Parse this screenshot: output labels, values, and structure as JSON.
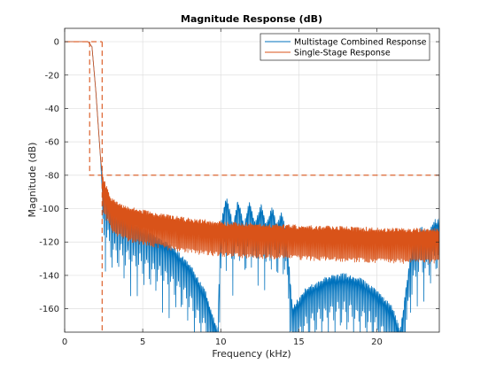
{
  "chart_data": {
    "type": "line",
    "title": "Magnitude Response (dB)",
    "xlabel": "Frequency (kHz)",
    "ylabel": "Magnitude (dB)",
    "xlim": [
      0,
      24
    ],
    "ylim": [
      -174,
      8
    ],
    "xticks": [
      0,
      5,
      10,
      15,
      20
    ],
    "yticks": [
      0,
      -20,
      -40,
      -60,
      -80,
      -100,
      -120,
      -140,
      -160
    ],
    "grid": true,
    "legend_position": "top-right",
    "mask": {
      "color": "#D95319",
      "passband_edge_khz": 1.6,
      "stopband_edge_khz": 2.4,
      "stopband_attenuation_db": -80
    },
    "series": [
      {
        "name": "Multistage Combined Response",
        "color": "#0072BD",
        "envelope": [
          [
            0,
            0
          ],
          [
            1.5,
            0
          ],
          [
            1.75,
            -3
          ],
          [
            2.0,
            -30
          ],
          [
            2.3,
            -70
          ],
          [
            2.4,
            -88
          ],
          [
            3,
            -103
          ],
          [
            4,
            -108
          ],
          [
            5,
            -112
          ],
          [
            6,
            -118
          ],
          [
            7,
            -124
          ],
          [
            8,
            -134
          ],
          [
            9,
            -150
          ],
          [
            9.8,
            -174
          ],
          [
            10,
            -110
          ],
          [
            10.35,
            -93
          ],
          [
            10.8,
            -110
          ],
          [
            11.1,
            -95
          ],
          [
            11.5,
            -110
          ],
          [
            11.85,
            -96
          ],
          [
            12.2,
            -110
          ],
          [
            12.6,
            -98
          ],
          [
            12.9,
            -110
          ],
          [
            13.3,
            -100
          ],
          [
            13.6,
            -110
          ],
          [
            13.9,
            -103
          ],
          [
            14.2,
            -115
          ],
          [
            14.6,
            -160
          ],
          [
            15.5,
            -148
          ],
          [
            17,
            -141
          ],
          [
            18,
            -140
          ],
          [
            19,
            -143
          ],
          [
            20,
            -150
          ],
          [
            21,
            -160
          ],
          [
            21.5,
            -174
          ],
          [
            22.2,
            -125
          ],
          [
            22.8,
            -112
          ],
          [
            23.3,
            -115
          ],
          [
            23.7,
            -108
          ],
          [
            24,
            -107
          ]
        ]
      },
      {
        "name": "Single-Stage Response",
        "color": "#D95319",
        "envelope": [
          [
            0,
            0
          ],
          [
            1.5,
            0
          ],
          [
            1.75,
            -3
          ],
          [
            2.0,
            -30
          ],
          [
            2.3,
            -70
          ],
          [
            2.45,
            -82
          ],
          [
            3,
            -95
          ],
          [
            4,
            -100
          ],
          [
            6,
            -104
          ],
          [
            8,
            -107
          ],
          [
            10,
            -109
          ],
          [
            12,
            -110
          ],
          [
            15,
            -111
          ],
          [
            18,
            -112
          ],
          [
            21,
            -113
          ],
          [
            24,
            -113
          ]
        ]
      }
    ]
  }
}
